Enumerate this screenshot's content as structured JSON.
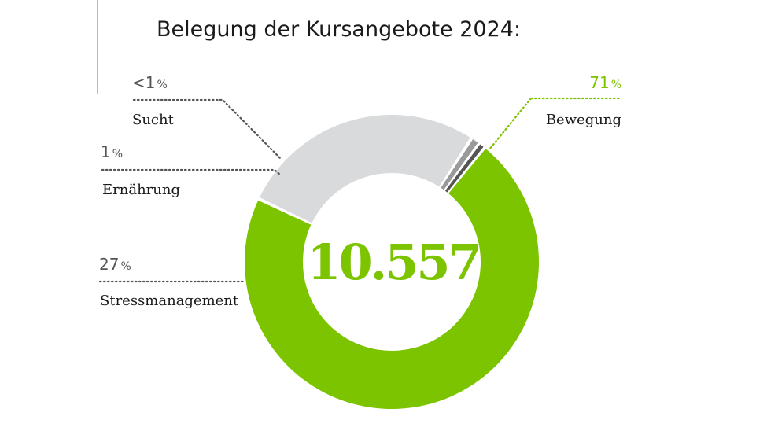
{
  "title": "Belegung der Kursangebote 2024:",
  "center_value": "10.557",
  "colors": {
    "accent": "#7dc400",
    "label_text": "#1a1a1a",
    "pct_text": "#555555"
  },
  "chart_data": {
    "type": "pie",
    "title": "Belegung der Kursangebote 2024:",
    "center_label": "10.557",
    "donut": true,
    "slices": [
      {
        "name": "Bewegung",
        "value": 71,
        "label": "71",
        "color": "#7dc400"
      },
      {
        "name": "Stressmanagement",
        "value": 27,
        "label": "27",
        "color": "#d9dadb"
      },
      {
        "name": "Ernährung",
        "value": 1,
        "label": "1",
        "color": "#9a9a9a"
      },
      {
        "name": "Sucht",
        "value": 0.7,
        "label": "<1",
        "color": "#555555"
      }
    ],
    "percent_sign": "%"
  }
}
